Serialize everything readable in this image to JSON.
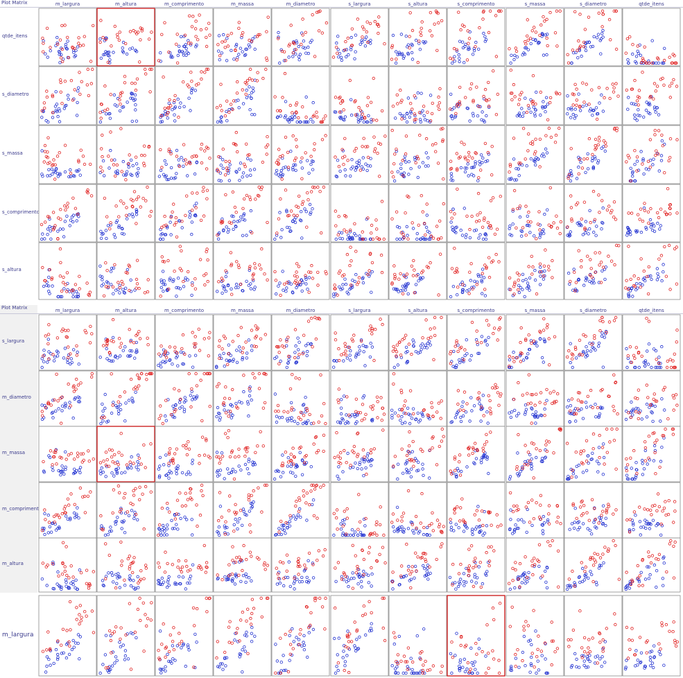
{
  "panels": [
    {
      "title": "Plot Matrix",
      "columns": [
        "m_largura",
        "m_altura",
        "m_comprimento",
        "m_massa",
        "m_diametro",
        "s_largura",
        "s_altura",
        "s_comprimento",
        "s_massa",
        "s_diametro",
        "qtde_itens"
      ],
      "rows": [
        "qtde_itens",
        "s_diametro",
        "s_massa",
        "s_comprimento",
        "s_altura"
      ],
      "highlighted": [
        {
          "row": "qtde_itens",
          "column": "m_altura"
        }
      ]
    },
    {
      "title": "Plot Matrix",
      "columns": [
        "m_largura",
        "m_altura",
        "m_comprimento",
        "m_massa",
        "m_diametro",
        "s_largura",
        "s_altura",
        "s_comprimento",
        "s_massa",
        "s_diametro",
        "qtde_itens"
      ],
      "rows": [
        "s_largura",
        "m_diametro",
        "m_massa",
        "m_comprimento",
        "m_altura",
        "m_largura"
      ],
      "highlighted": [
        {
          "row": "m_massa",
          "column": "m_altura"
        },
        {
          "row": "m_largura",
          "column": "s_comprimento"
        }
      ]
    }
  ],
  "colors": {
    "class_a": "#e02020",
    "class_b": "#2030d0",
    "highlight": "#cc2222",
    "frame": "#8a8a8a"
  },
  "chart_data": {
    "type": "scatter",
    "title": "Plot Matrix",
    "variables": [
      "m_largura",
      "m_altura",
      "m_comprimento",
      "m_massa",
      "m_diametro",
      "s_largura",
      "s_altura",
      "s_comprimento",
      "s_massa",
      "s_diametro",
      "qtde_itens"
    ],
    "series": [
      {
        "color": "#e02020"
      },
      {
        "color": "#2030d0"
      }
    ],
    "grid": false
  }
}
